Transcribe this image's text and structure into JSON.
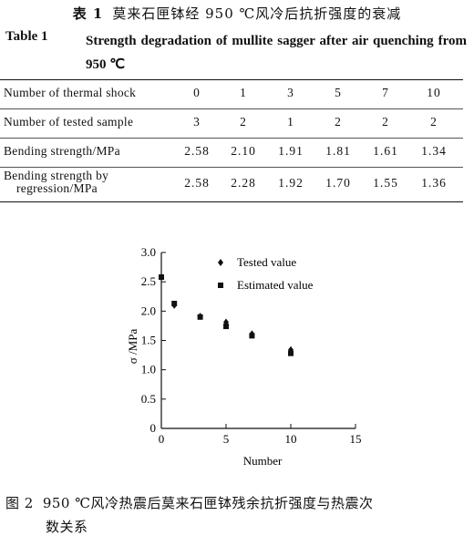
{
  "table": {
    "cn_label": "表 1",
    "cn_title": "莫来石匣钵经 950 ℃风冷后抗折强度的衰减",
    "en_label": "Table 1",
    "en_title": "Strength degradation of mullite sagger after air quenching from 950 ℃",
    "rows": [
      {
        "header": "Number of thermal shock",
        "values": [
          "0",
          "1",
          "3",
          "5",
          "7",
          "10"
        ]
      },
      {
        "header": "Number of tested sample",
        "values": [
          "3",
          "2",
          "1",
          "2",
          "2",
          "2"
        ]
      },
      {
        "header": "Bending strength/MPa",
        "values": [
          "2.58",
          "2.10",
          "1.91",
          "1.81",
          "1.61",
          "1.34"
        ]
      },
      {
        "header_line1": "Bending strength by",
        "header_line2": "regression/MPa",
        "values": [
          "2.58",
          "2.28",
          "1.92",
          "1.70",
          "1.55",
          "1.36"
        ]
      }
    ]
  },
  "chart_data": {
    "type": "scatter",
    "xlabel": "Number",
    "ylabel": "σ /MPa",
    "xlim": [
      0,
      15
    ],
    "ylim": [
      0,
      3.0
    ],
    "xticks": [
      "0",
      "5",
      "10",
      "15"
    ],
    "yticks": [
      "0",
      "0.5",
      "1.0",
      "1.5",
      "2.0",
      "2.5",
      "3.0"
    ],
    "series": [
      {
        "name": "Tested value",
        "marker": "diamond",
        "x": [
          0,
          1,
          3,
          5,
          7,
          10
        ],
        "y": [
          2.58,
          2.1,
          1.91,
          1.81,
          1.61,
          1.34
        ]
      },
      {
        "name": "Estimated value",
        "marker": "square",
        "x": [
          0,
          1,
          3,
          5,
          7,
          10
        ],
        "y": [
          2.58,
          2.13,
          1.9,
          1.74,
          1.58,
          1.28
        ]
      }
    ],
    "legend": "top-right"
  },
  "caption": {
    "label": "图 2",
    "line1": "950 ℃风冷热震后莫来石匣钵残余抗折强度与热震次",
    "line2": "数关系"
  }
}
